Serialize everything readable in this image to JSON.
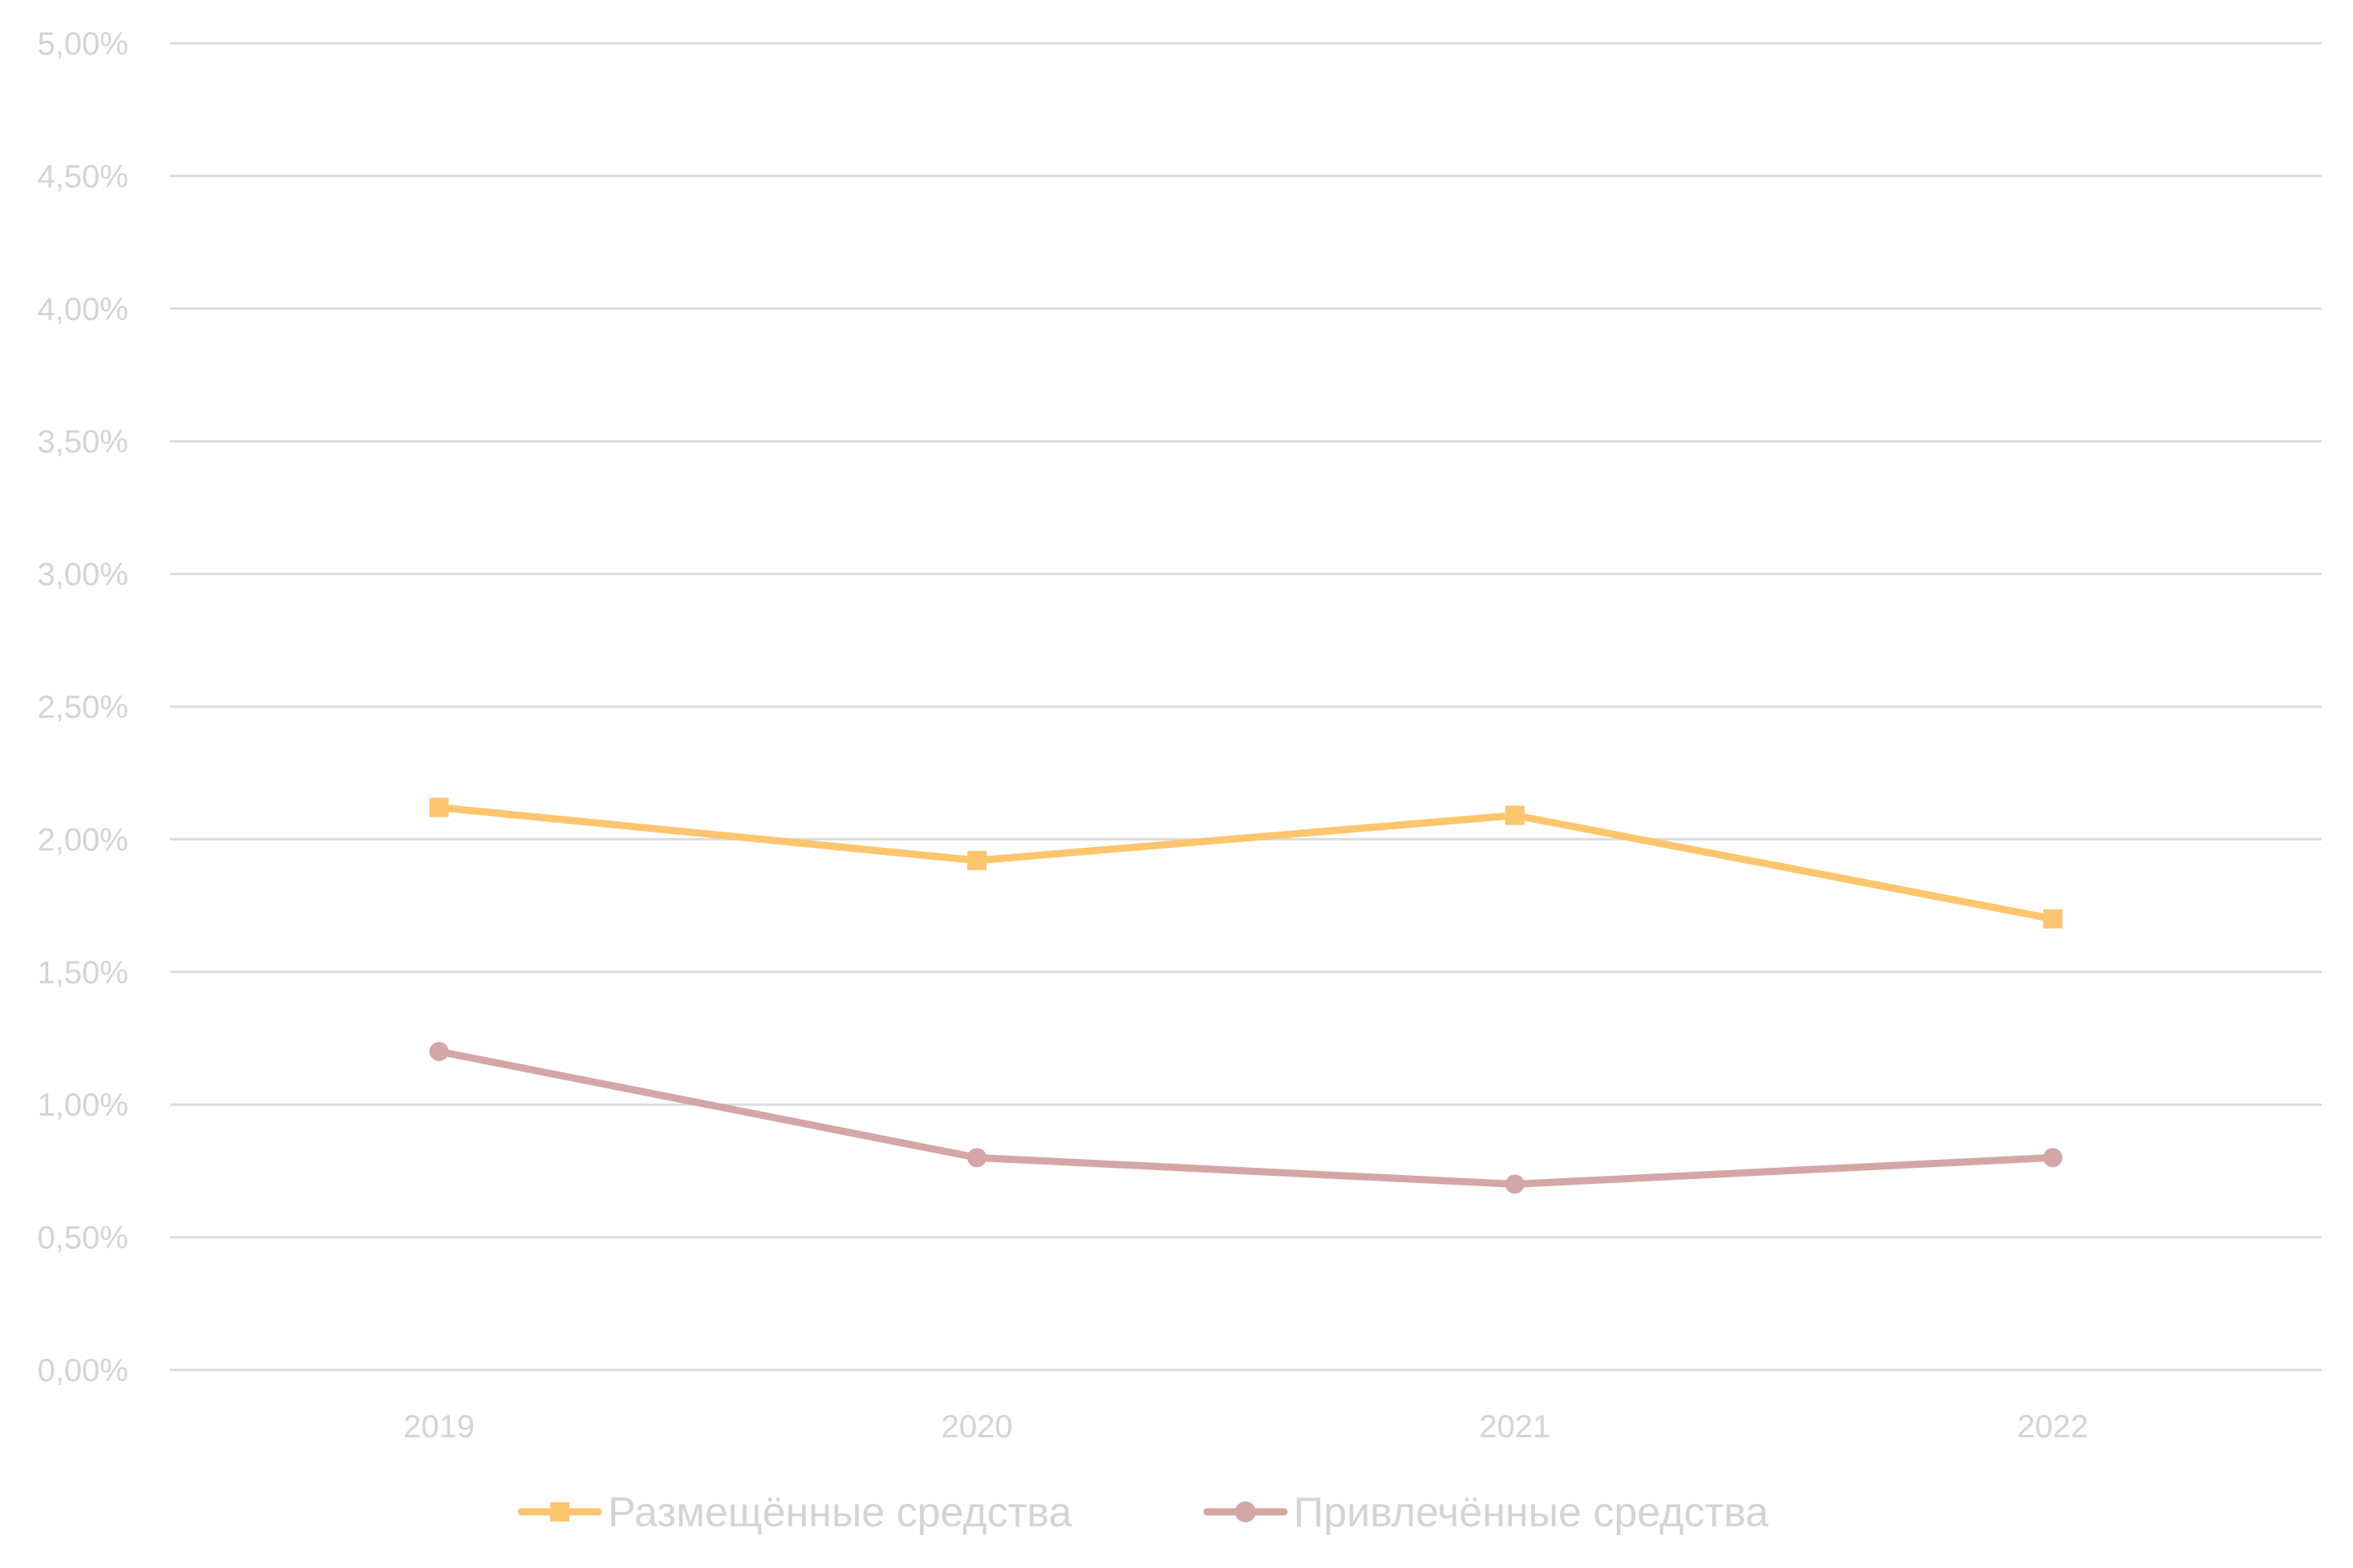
{
  "chart_data": {
    "type": "line",
    "title": "",
    "xlabel": "",
    "ylabel": "",
    "categories": [
      "2019",
      "2020",
      "2021",
      "2022"
    ],
    "y_ticks": [
      "0,00%",
      "0,50%",
      "1,00%",
      "1,50%",
      "2,00%",
      "2,50%",
      "3,00%",
      "3,50%",
      "4,00%",
      "4,50%",
      "5,00%"
    ],
    "ylim": [
      0,
      5
    ],
    "grid": true,
    "legend_position": "bottom",
    "series": [
      {
        "name": "Размещённые средства",
        "values": [
          2.12,
          1.92,
          2.09,
          1.7
        ],
        "color": "#fdc56d",
        "marker": "square"
      },
      {
        "name": "Привлечённые средства",
        "values": [
          1.2,
          0.8,
          0.7,
          0.8
        ],
        "color": "#d4a6a6",
        "marker": "circle"
      }
    ]
  }
}
